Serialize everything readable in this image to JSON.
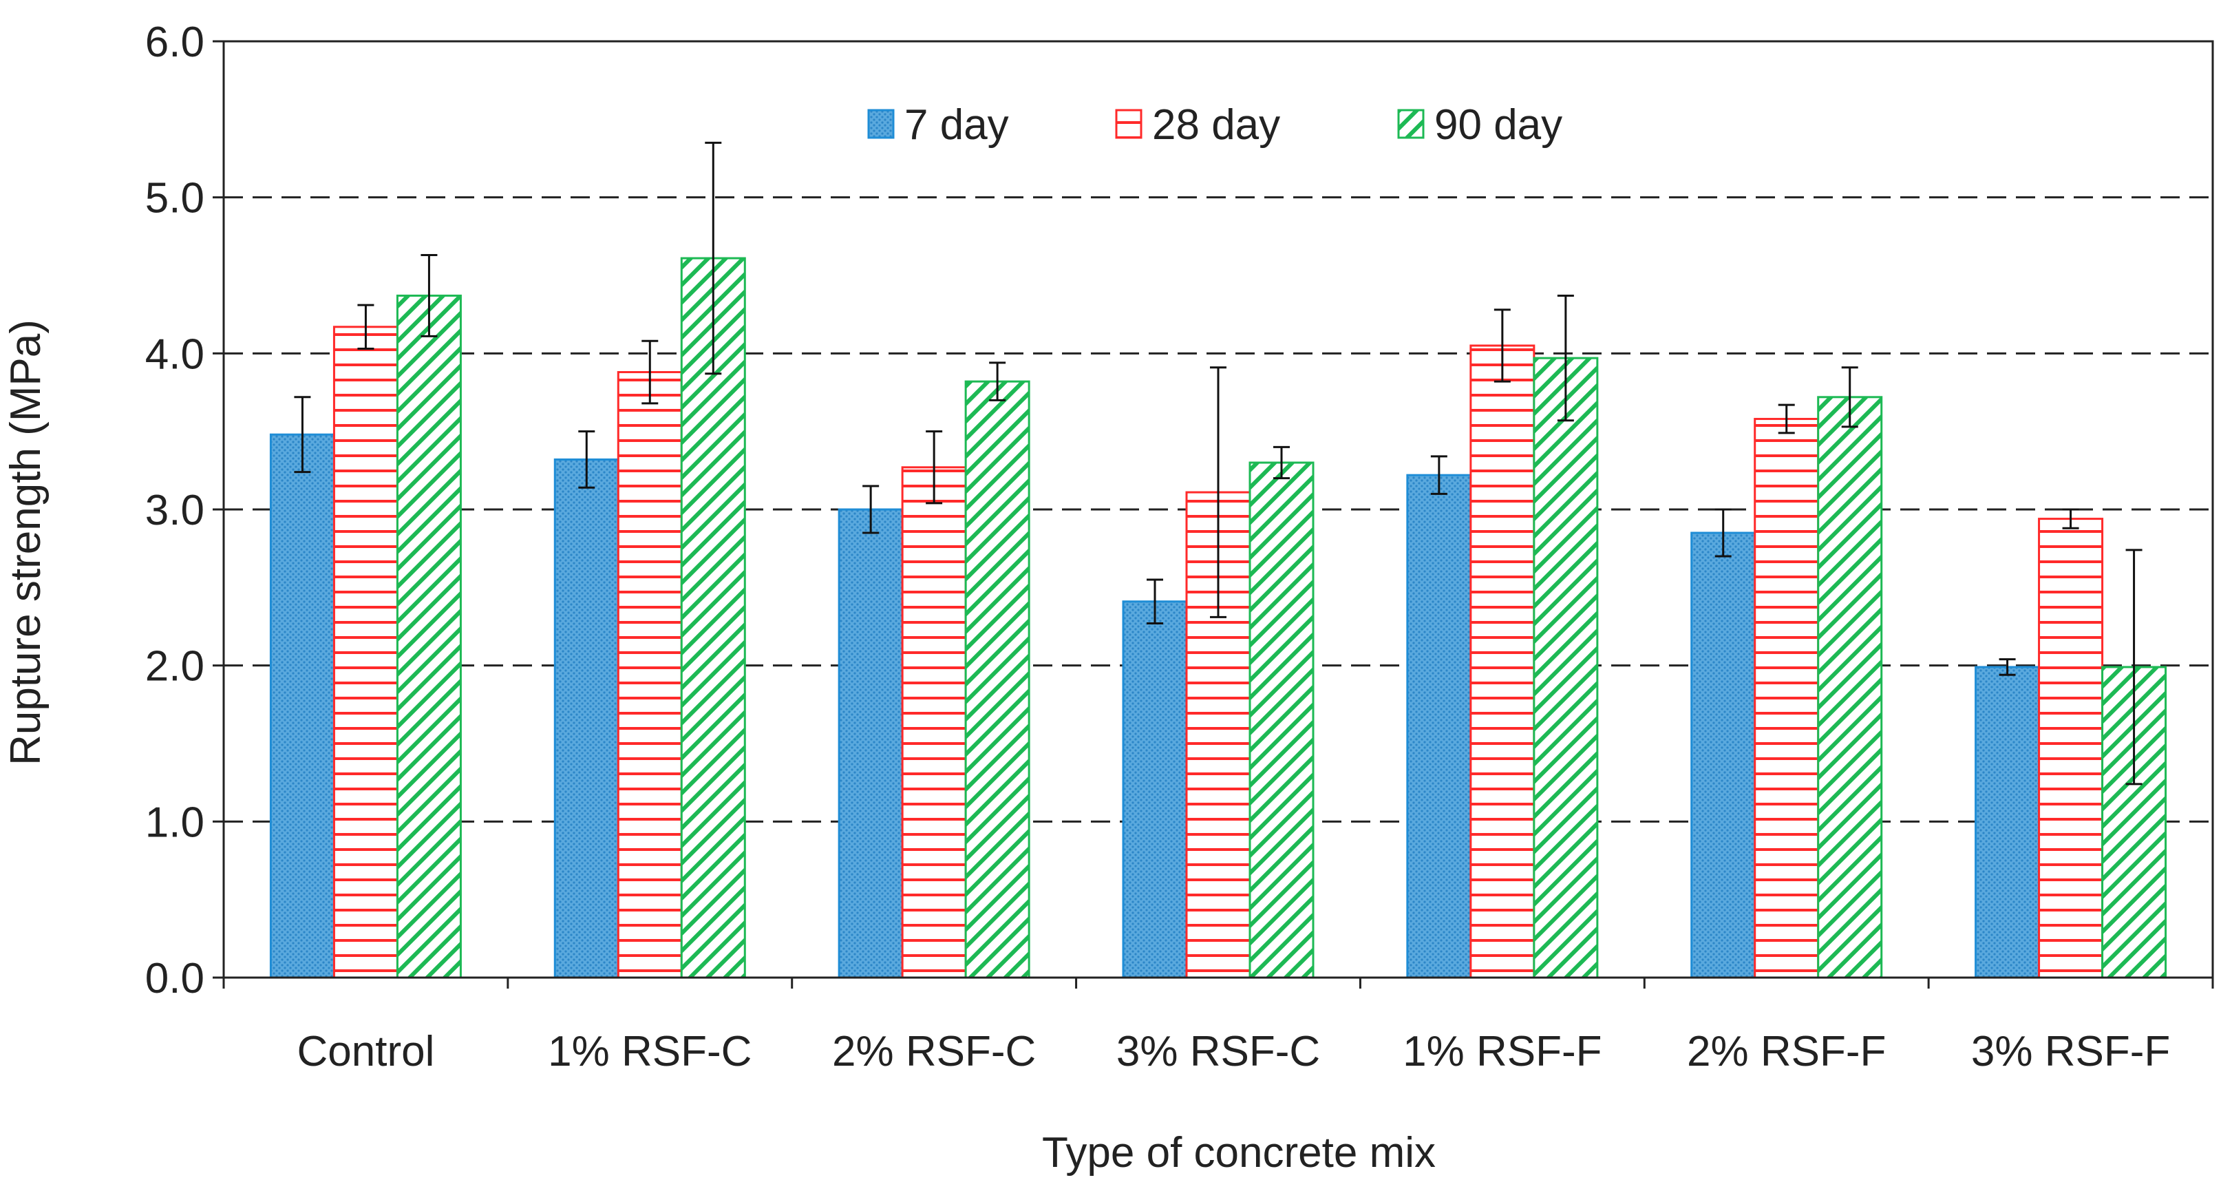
{
  "chart_data": {
    "type": "bar",
    "title": "",
    "xlabel": "Type of concrete mix",
    "ylabel": "Rupture  strength (MPa)",
    "ylim": [
      0,
      6
    ],
    "yticks": [
      "0.0",
      "1.0",
      "2.0",
      "3.0",
      "4.0",
      "5.0",
      "6.0"
    ],
    "grid": "horizontal dashed at 1.0 to 5.0",
    "legend_position": "top-center",
    "categories": [
      "Control",
      "1% RSF-C",
      "2% RSF-C",
      "3% RSF-C",
      "1% RSF-F",
      "2% RSF-F",
      "3% RSF-F"
    ],
    "series": [
      {
        "name": "7 day",
        "pattern": "dots",
        "color": "#1f8dd6",
        "fill": "#5aa9de",
        "values": [
          3.48,
          3.32,
          3.0,
          2.41,
          3.22,
          2.85,
          1.99
        ],
        "errors": [
          0.24,
          0.18,
          0.15,
          0.14,
          0.12,
          0.15,
          0.05
        ]
      },
      {
        "name": "28 day",
        "pattern": "horizontal-lines",
        "color": "#ff2a2a",
        "fill": "#ffffff",
        "values": [
          4.17,
          3.88,
          3.27,
          3.11,
          4.05,
          3.58,
          2.94
        ],
        "errors": [
          0.14,
          0.2,
          0.23,
          0.8,
          0.23,
          0.09,
          0.06
        ]
      },
      {
        "name": "90 day",
        "pattern": "diagonal-lines",
        "color": "#1db954",
        "fill": "#ffffff",
        "values": [
          4.37,
          4.61,
          3.82,
          3.3,
          3.97,
          3.72,
          1.99
        ],
        "errors": [
          0.26,
          0.74,
          0.12,
          0.1,
          0.4,
          0.19,
          0.75
        ]
      }
    ]
  }
}
